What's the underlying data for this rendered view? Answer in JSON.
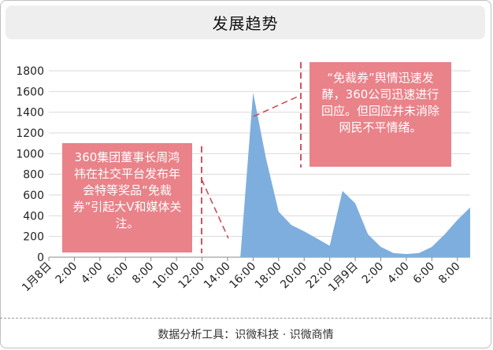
{
  "title": "发展趋势",
  "footer": "数据分析工具：识微科技 · 识微商情",
  "annotations": {
    "left": "360集团董事长周鸿祎在社交平台发布年会特等奖品“免裁券”引起大V和媒体关注。",
    "right": "“免裁券”舆情迅速发酵，360公司迅速进行回应。但回应并未消除网民不平情绪。"
  },
  "colors": {
    "area": "#7eaedd",
    "annotation": "#e98289",
    "marker_line": "#d04050"
  },
  "chart_data": {
    "type": "area",
    "x": [
      "1月8日",
      "1:00",
      "2:00",
      "3:00",
      "4:00",
      "5:00",
      "6:00",
      "7:00",
      "8:00",
      "9:00",
      "10:00",
      "11:00",
      "12:00",
      "13:00",
      "14:00",
      "15:00",
      "16:00",
      "17:00",
      "18:00",
      "19:00",
      "20:00",
      "21:00",
      "22:00",
      "23:00",
      "1月9日",
      "1:00",
      "2:00",
      "3:00",
      "4:00",
      "5:00",
      "6:00",
      "7:00",
      "8:00",
      "9:00"
    ],
    "x_tick_labels": [
      "1月8日",
      "2:00",
      "4:00",
      "6:00",
      "8:00",
      "10:00",
      "12:00",
      "14:00",
      "16:00",
      "18:00",
      "20:00",
      "22:00",
      "1月9日",
      "2:00",
      "4:00",
      "6:00",
      "8:00"
    ],
    "values": [
      0,
      0,
      0,
      0,
      0,
      0,
      0,
      0,
      0,
      0,
      0,
      0,
      0,
      0,
      0,
      0,
      1590,
      960,
      440,
      310,
      250,
      180,
      110,
      640,
      520,
      220,
      100,
      40,
      30,
      40,
      100,
      220,
      360,
      480
    ],
    "ylim": [
      0,
      1800
    ],
    "y_ticks": [
      0,
      200,
      400,
      600,
      800,
      1000,
      1200,
      1400,
      1600,
      1800
    ],
    "grid": true,
    "legend": "none"
  }
}
